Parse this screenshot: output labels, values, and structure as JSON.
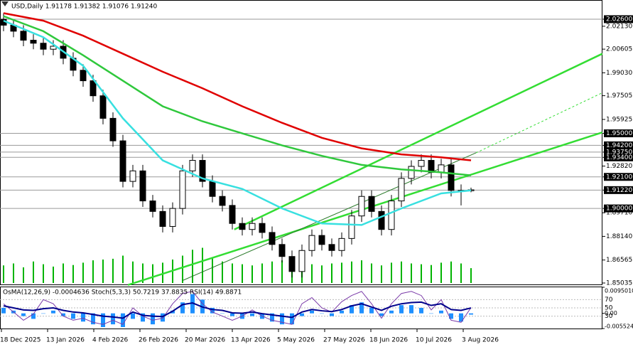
{
  "chart_data": {
    "type": "candlestick",
    "title": "USD,Daily  1.91178 1.91382 1.91076 1.91240",
    "open": [
      2.026,
      2.022,
      2.018,
      2.012,
      2.01,
      2.006,
      2.008,
      2.0,
      1.992,
      1.985,
      1.975,
      1.96,
      1.945,
      1.918,
      1.925,
      1.905,
      1.898,
      1.888,
      1.9,
      1.925,
      1.932,
      1.918,
      1.908,
      1.902,
      1.89,
      1.886,
      1.89,
      1.884,
      1.876,
      1.868,
      1.858,
      1.872,
      1.882,
      1.876,
      1.872,
      1.88,
      1.895,
      1.908,
      1.898,
      1.886,
      1.905,
      1.92,
      1.928,
      1.932,
      1.924,
      1.929,
      1.912,
      1.91178
    ],
    "high": [
      2.03,
      2.026,
      2.022,
      2.016,
      2.014,
      2.012,
      2.012,
      2.004,
      1.996,
      1.989,
      1.979,
      1.964,
      1.949,
      1.929,
      1.929,
      1.909,
      1.902,
      1.904,
      1.929,
      1.936,
      1.936,
      1.922,
      1.912,
      1.906,
      1.894,
      1.894,
      1.894,
      1.888,
      1.88,
      1.872,
      1.876,
      1.886,
      1.886,
      1.88,
      1.884,
      1.899,
      1.912,
      1.912,
      1.902,
      1.909,
      1.924,
      1.932,
      1.936,
      1.936,
      1.933,
      1.933,
      1.916,
      1.91382
    ],
    "low": [
      2.018,
      2.014,
      2.008,
      2.006,
      2.002,
      2.002,
      1.996,
      1.988,
      1.981,
      1.971,
      1.956,
      1.941,
      1.914,
      1.914,
      1.901,
      1.894,
      1.884,
      1.884,
      1.896,
      1.921,
      1.914,
      1.904,
      1.898,
      1.886,
      1.882,
      1.882,
      1.88,
      1.872,
      1.864,
      1.854,
      1.854,
      1.868,
      1.872,
      1.868,
      1.868,
      1.876,
      1.891,
      1.894,
      1.882,
      1.882,
      1.901,
      1.916,
      1.924,
      1.92,
      1.92,
      1.908,
      1.902,
      1.91076
    ],
    "close": [
      2.022,
      2.018,
      2.012,
      2.01,
      2.006,
      2.008,
      2.0,
      1.992,
      1.985,
      1.975,
      1.96,
      1.945,
      1.918,
      1.925,
      1.905,
      1.898,
      1.888,
      1.9,
      1.925,
      1.932,
      1.918,
      1.908,
      1.902,
      1.89,
      1.886,
      1.89,
      1.884,
      1.876,
      1.868,
      1.858,
      1.872,
      1.882,
      1.876,
      1.872,
      1.88,
      1.895,
      1.908,
      1.898,
      1.886,
      1.905,
      1.92,
      1.928,
      1.932,
      1.924,
      1.929,
      1.912,
      1.91178,
      1.9124
    ],
    "ylim": [
      1.8494,
      2.0383
    ],
    "yticks": [
      {
        "value": 2.026,
        "label": "2.02600"
      },
      {
        "value": 2.0213,
        "label": "2.02130"
      },
      {
        "value": 2.00605,
        "label": "2.00605"
      },
      {
        "value": 1.9903,
        "label": "1.99030"
      },
      {
        "value": 1.97505,
        "label": "1.97505"
      },
      {
        "value": 1.95925,
        "label": "1.95925"
      },
      {
        "value": 1.95,
        "label": "1.95000"
      },
      {
        "value": 1.942,
        "label": "1.94200"
      },
      {
        "value": 1.9375,
        "label": "1.93750"
      },
      {
        "value": 1.934,
        "label": "1.93400"
      },
      {
        "value": 1.9282,
        "label": "1.92820"
      },
      {
        "value": 1.921,
        "label": "1.92100"
      },
      {
        "value": 1.9122,
        "label": "1.91220"
      },
      {
        "value": 1.9,
        "label": "1.90000"
      },
      {
        "value": 1.8971,
        "label": "1.89710"
      },
      {
        "value": 1.8814,
        "label": "1.88140"
      },
      {
        "value": 1.86565,
        "label": "1.86565"
      },
      {
        "value": 1.85035,
        "label": "1.85035"
      }
    ],
    "levels": [
      2.026,
      1.95,
      1.942,
      1.9375,
      1.934,
      1.921,
      1.9122,
      1.9
    ],
    "level_color": "#9a9a9a",
    "categories": [
      "18 Dec 2025",
      "13 Jan 2026",
      "4 Feb 2026",
      "26 Feb 2026",
      "20 Mar 2026",
      "13 Apr 2026",
      "5 May 2026",
      "27 May 2026",
      "18 Jun 2026",
      "10 Jul 2026",
      "3 Aug 2026"
    ],
    "volume": {
      "color": "#00b400",
      "vlim": [
        0,
        100
      ],
      "values": [
        45,
        50,
        40,
        55,
        48,
        42,
        50,
        46,
        52,
        58,
        60,
        62,
        70,
        55,
        50,
        48,
        52,
        60,
        70,
        85,
        90,
        65,
        55,
        50,
        48,
        45,
        50,
        55,
        58,
        62,
        50,
        48,
        45,
        50,
        52,
        55,
        58,
        50,
        45,
        52,
        55,
        50,
        48,
        46,
        52,
        55,
        50,
        38
      ]
    },
    "moving_averages": {
      "x": [
        0,
        4,
        8,
        12,
        16,
        20,
        24,
        28,
        32,
        36,
        40,
        44,
        47
      ],
      "series": [
        {
          "color": "#e00000",
          "values": [
            2.03,
            2.025,
            2.015,
            2.003,
            1.991,
            1.98,
            1.968,
            1.957,
            1.947,
            1.94,
            1.936,
            1.934,
            1.932
          ]
        },
        {
          "color": "#2fc83c",
          "values": [
            2.028,
            2.018,
            2.002,
            1.985,
            1.968,
            1.958,
            1.95,
            1.942,
            1.935,
            1.929,
            1.926,
            1.924,
            1.922
          ]
        },
        {
          "color": "#38e0e0",
          "values": [
            2.025,
            2.014,
            1.995,
            1.96,
            1.932,
            1.92,
            1.913,
            1.9,
            1.89,
            1.889,
            1.9,
            1.91,
            1.912
          ]
        }
      ]
    },
    "trend_lines": [
      {
        "color": "#33dd33",
        "x": [
          12.5,
          60.2
        ],
        "y": [
          1.849,
          1.9506
        ],
        "dashed": false
      },
      {
        "color": "#33dd33",
        "x": [
          23.2,
          60.2
        ],
        "y": [
          1.886,
          2.003
        ],
        "dashed": false
      },
      {
        "color": "#33dd33",
        "x": [
          47.5,
          60.2
        ],
        "y": [
          1.937,
          1.977
        ],
        "dashed": true
      },
      {
        "color": "#2a7a2a",
        "x": [
          18.0,
          47.5
        ],
        "y": [
          1.852,
          1.937
        ],
        "dashed": false
      }
    ],
    "oscillator": {
      "label": "OsMA(12,26,9) -0.0004636  Stoch(5,3,3) 50.7219 37.8835  RSI(14) 49.8871",
      "osma": {
        "color": "#1e90ff",
        "values": [
          0.002,
          0.001,
          -0.001,
          -0.002,
          0,
          0.001,
          -0.001,
          -0.002,
          -0.003,
          -0.004,
          -0.005,
          -0.004,
          -0.005,
          -0.002,
          -0.003,
          -0.004,
          -0.003,
          0.001,
          0.004,
          0.007,
          0.005,
          0.002,
          0,
          -0.001,
          -0.002,
          -0.001,
          -0.002,
          -0.003,
          -0.004,
          -0.004,
          -0.001,
          0.001,
          0,
          -0.001,
          0.001,
          0.003,
          0.004,
          0.002,
          -0.001,
          0.001,
          0.003,
          0.003,
          0.002,
          0,
          0.001,
          -0.002,
          -0.003,
          -0.0004636
        ]
      },
      "osma_lim": [
        -0.005524,
        0.009501
      ],
      "osma_ticks": [
        {
          "value": 0.009501,
          "label": "0.0095010"
        },
        {
          "value": 0,
          "label": "0.00"
        },
        {
          "value": -0.005524,
          "label": "-0.005524"
        }
      ],
      "stoch": {
        "color": "#7a3aa8",
        "values": [
          60,
          40,
          20,
          35,
          70,
          60,
          30,
          20,
          25,
          15,
          10,
          20,
          10,
          50,
          30,
          20,
          25,
          60,
          85,
          90,
          60,
          40,
          30,
          20,
          30,
          45,
          30,
          20,
          15,
          10,
          60,
          75,
          50,
          40,
          65,
          80,
          90,
          60,
          25,
          60,
          85,
          90,
          80,
          45,
          70,
          20,
          15,
          50.7219
        ]
      },
      "rsi": {
        "color": "#00008b",
        "values": [
          55,
          50,
          45,
          44,
          48,
          50,
          44,
          40,
          38,
          34,
          30,
          28,
          25,
          40,
          32,
          30,
          29,
          42,
          58,
          62,
          52,
          46,
          44,
          38,
          37,
          40,
          36,
          33,
          30,
          27,
          40,
          46,
          43,
          41,
          46,
          55,
          60,
          52,
          44,
          54,
          60,
          63,
          64,
          56,
          60,
          46,
          44,
          49.8871
        ]
      },
      "lim": [
        0,
        100
      ],
      "ticks": [
        30,
        50,
        70
      ]
    }
  }
}
